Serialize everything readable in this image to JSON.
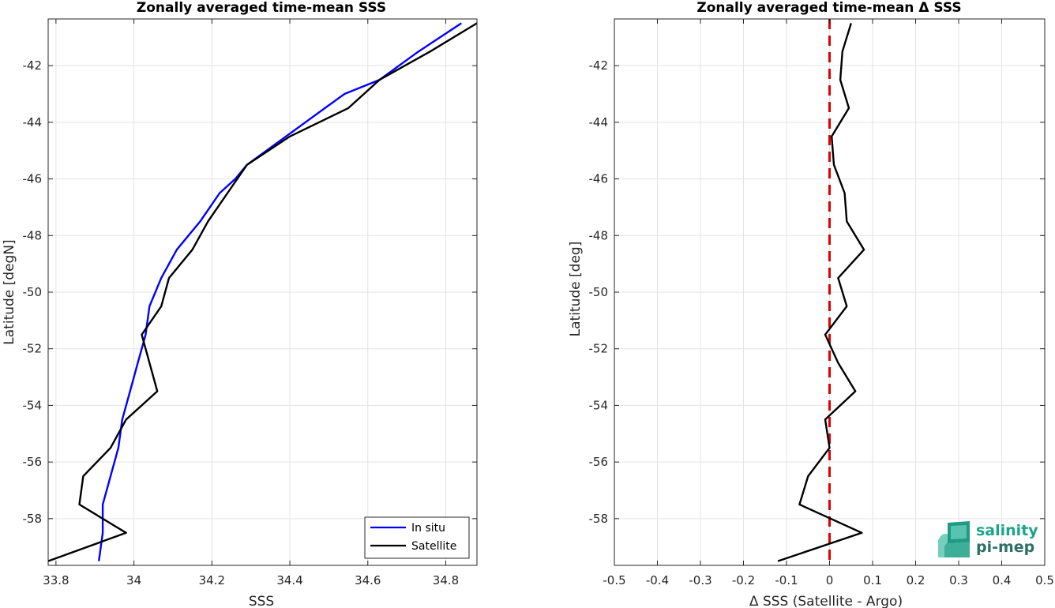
{
  "chart_data": [
    {
      "type": "line",
      "title": "Zonally averaged time-mean SSS",
      "xlabel": "SSS",
      "ylabel": "Latitude [degN]",
      "xlim": [
        33.78,
        34.88
      ],
      "ylim": [
        -59.65,
        -40.35
      ],
      "x_ticks": [
        "33.8",
        "34",
        "34.2",
        "34.4",
        "34.6",
        "34.8"
      ],
      "x_tick_values": [
        33.8,
        34.0,
        34.2,
        34.4,
        34.6,
        34.8
      ],
      "y_ticks": [
        "-42",
        "-44",
        "-46",
        "-48",
        "-50",
        "-52",
        "-54",
        "-56",
        "-58"
      ],
      "y_tick_values": [
        -42,
        -44,
        -46,
        -48,
        -50,
        -52,
        -54,
        -56,
        -58
      ],
      "grid": true,
      "legend_position": "bottom-right",
      "series": [
        {
          "name": "In situ",
          "color": "#0000ff",
          "points": [
            [
              34.84,
              -40.5
            ],
            [
              34.73,
              -41.5
            ],
            [
              34.63,
              -42.5
            ],
            [
              34.54,
              -43.0
            ],
            [
              34.49,
              -43.5
            ],
            [
              34.39,
              -44.5
            ],
            [
              34.29,
              -45.5
            ],
            [
              34.26,
              -46.0
            ],
            [
              34.22,
              -46.5
            ],
            [
              34.17,
              -47.5
            ],
            [
              34.11,
              -48.5
            ],
            [
              34.07,
              -49.5
            ],
            [
              34.04,
              -50.5
            ],
            [
              34.03,
              -51.5
            ],
            [
              34.01,
              -52.5
            ],
            [
              33.99,
              -53.5
            ],
            [
              33.97,
              -54.5
            ],
            [
              33.96,
              -55.5
            ],
            [
              33.94,
              -56.5
            ],
            [
              33.92,
              -57.5
            ],
            [
              33.92,
              -58.5
            ],
            [
              33.91,
              -59.5
            ]
          ]
        },
        {
          "name": "Satellite",
          "color": "#000000",
          "points": [
            [
              34.88,
              -40.5
            ],
            [
              34.76,
              -41.5
            ],
            [
              34.63,
              -42.5
            ],
            [
              34.55,
              -43.5
            ],
            [
              34.4,
              -44.5
            ],
            [
              34.29,
              -45.5
            ],
            [
              34.24,
              -46.5
            ],
            [
              34.19,
              -47.5
            ],
            [
              34.15,
              -48.5
            ],
            [
              34.09,
              -49.5
            ],
            [
              34.07,
              -50.5
            ],
            [
              34.02,
              -51.5
            ],
            [
              34.04,
              -52.5
            ],
            [
              34.06,
              -53.5
            ],
            [
              33.98,
              -54.5
            ],
            [
              33.94,
              -55.5
            ],
            [
              33.87,
              -56.5
            ],
            [
              33.86,
              -57.5
            ],
            [
              33.98,
              -58.5
            ],
            [
              33.78,
              -59.5
            ]
          ]
        }
      ]
    },
    {
      "type": "line",
      "title": "Zonally averaged time-mean Δ SSS",
      "xlabel": "Δ SSS (Satellite - Argo)",
      "ylabel": "Latitude [deg]",
      "xlim": [
        -0.5,
        0.5
      ],
      "ylim": [
        -59.65,
        -40.35
      ],
      "x_ticks": [
        "-0.5",
        "-0.4",
        "-0.3",
        "-0.2",
        "-0.1",
        "0",
        "0.1",
        "0.2",
        "0.3",
        "0.4",
        "0.5"
      ],
      "x_tick_values": [
        -0.5,
        -0.4,
        -0.3,
        -0.2,
        -0.1,
        0,
        0.1,
        0.2,
        0.3,
        0.4,
        0.5
      ],
      "y_ticks": [
        "-42",
        "-44",
        "-46",
        "-48",
        "-50",
        "-52",
        "-54",
        "-56",
        "-58"
      ],
      "y_tick_values": [
        -42,
        -44,
        -46,
        -48,
        -50,
        -52,
        -54,
        -56,
        -58
      ],
      "grid": true,
      "reference_line": {
        "x": 0,
        "color": "#e00000",
        "style": "dashed"
      },
      "series": [
        {
          "name": "",
          "color": "#000000",
          "points": [
            [
              0.05,
              -40.5
            ],
            [
              0.03,
              -41.5
            ],
            [
              0.025,
              -42.5
            ],
            [
              0.045,
              -43.5
            ],
            [
              0.005,
              -44.5
            ],
            [
              0.01,
              -45.5
            ],
            [
              0.035,
              -46.5
            ],
            [
              0.04,
              -47.5
            ],
            [
              0.08,
              -48.5
            ],
            [
              0.02,
              -49.5
            ],
            [
              0.04,
              -50.5
            ],
            [
              -0.01,
              -51.5
            ],
            [
              0.02,
              -52.5
            ],
            [
              0.06,
              -53.5
            ],
            [
              -0.01,
              -54.5
            ],
            [
              0.0,
              -55.5
            ],
            [
              -0.05,
              -56.5
            ],
            [
              -0.07,
              -57.5
            ],
            [
              0.075,
              -58.5
            ],
            [
              -0.12,
              -59.5
            ]
          ]
        }
      ]
    }
  ],
  "logo": {
    "line1": "salinity",
    "line2": "pi-mep",
    "color1": "#1aa58a",
    "color2": "#2f6f6a"
  }
}
